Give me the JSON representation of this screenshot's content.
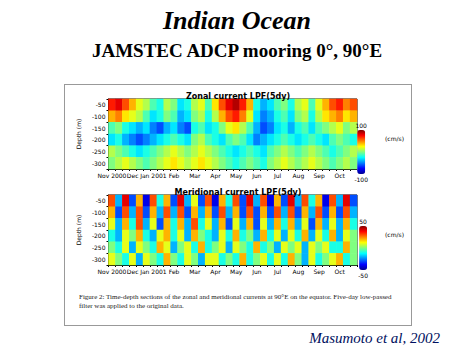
{
  "slide": {
    "title": "Indian Ocean",
    "subtitle": "JAMSTEC ADCP mooring 0°, 90°E",
    "caption": "Figure 2: Time-depth sections of the zonal and meridional currents at 90°E on the equator. Five-day low-passed filter was applied to the original data.",
    "citation": "Masumoto et al, 2002"
  },
  "chart_data": [
    {
      "type": "heatmap",
      "title": "Zonal current LPF(5dy)",
      "ylabel": "Depth (m)",
      "x": [
        "Nov 2000",
        null,
        null,
        "Dec",
        null,
        null,
        "Jan 2001",
        null,
        null,
        "Feb",
        null,
        null,
        "Mar",
        null,
        null,
        "Apr",
        null,
        null,
        "May",
        null,
        null,
        "Jun",
        null,
        null,
        "Jul",
        null,
        null,
        "Aug",
        null,
        null,
        "Sep",
        null,
        null,
        "Oct",
        null,
        null
      ],
      "y": [
        -50,
        -100,
        -150,
        -200,
        -250,
        -300
      ],
      "cells": [
        [
          70,
          80,
          60,
          40,
          20,
          10,
          -10,
          -20,
          10,
          0,
          -30,
          -20,
          10,
          20,
          -10,
          30,
          60,
          80,
          90,
          70,
          40,
          -20,
          -40,
          -30,
          -10,
          0,
          -20,
          10,
          20,
          -10,
          20,
          40,
          60,
          70,
          50,
          60
        ],
        [
          40,
          50,
          30,
          20,
          10,
          -10,
          -30,
          -20,
          0,
          -10,
          -40,
          -30,
          0,
          10,
          -20,
          10,
          40,
          60,
          70,
          50,
          20,
          -30,
          -50,
          -40,
          -20,
          -10,
          -30,
          0,
          10,
          -20,
          10,
          30,
          40,
          50,
          30,
          40
        ],
        [
          -10,
          0,
          -20,
          -30,
          -40,
          -30,
          -50,
          -60,
          -40,
          -30,
          -50,
          -60,
          -20,
          -10,
          -30,
          -20,
          0,
          20,
          30,
          10,
          -10,
          -40,
          -60,
          -50,
          -30,
          -20,
          -40,
          -20,
          -10,
          -30,
          -10,
          0,
          10,
          20,
          0,
          10
        ],
        [
          -30,
          -20,
          -40,
          -50,
          -60,
          -50,
          -40,
          -30,
          -20,
          -10,
          -20,
          -30,
          0,
          10,
          -10,
          -20,
          -30,
          -10,
          0,
          -10,
          -30,
          -50,
          -40,
          -30,
          -20,
          -10,
          -20,
          -30,
          -20,
          -10,
          -20,
          -30,
          -10,
          0,
          -10,
          -20
        ],
        [
          10,
          0,
          -10,
          -20,
          -30,
          -20,
          -10,
          0,
          10,
          20,
          10,
          0,
          10,
          20,
          10,
          0,
          -10,
          -20,
          -30,
          -20,
          -10,
          -20,
          -30,
          -10,
          0,
          10,
          0,
          -10,
          0,
          10,
          0,
          -10,
          -20,
          -10,
          0,
          10
        ],
        [
          0,
          10,
          20,
          10,
          0,
          -10,
          0,
          10,
          20,
          30,
          20,
          10,
          20,
          30,
          20,
          10,
          0,
          -10,
          -20,
          -10,
          0,
          -10,
          -20,
          0,
          10,
          20,
          10,
          0,
          10,
          20,
          10,
          0,
          -10,
          0,
          10,
          0
        ]
      ],
      "color_range": [
        -100,
        100
      ],
      "color_label": "(cm/s)"
    },
    {
      "type": "heatmap",
      "title": "Meridional current LPF(5dy)",
      "ylabel": "Depth (m)",
      "x": [
        "Nov 2000",
        null,
        null,
        "Dec",
        null,
        null,
        "Jan 2001",
        null,
        null,
        "Feb",
        null,
        null,
        "Mar",
        null,
        null,
        "Apr",
        null,
        null,
        "May",
        null,
        null,
        "Jun",
        null,
        null,
        "Jul",
        null,
        null,
        "Aug",
        null,
        null,
        "Sep",
        null,
        null,
        "Oct",
        null,
        null
      ],
      "y": [
        -50,
        -100,
        -150,
        -200,
        -250,
        -300
      ],
      "cells": [
        [
          30,
          -20,
          40,
          -30,
          20,
          -40,
          30,
          -10,
          20,
          -30,
          40,
          -20,
          10,
          -30,
          30,
          -40,
          20,
          -10,
          30,
          -30,
          40,
          -20,
          30,
          -40,
          20,
          -30,
          40,
          -20,
          30,
          -10,
          20,
          -40,
          30,
          -20,
          40,
          -30
        ],
        [
          20,
          -30,
          30,
          -20,
          30,
          -30,
          20,
          -20,
          30,
          -20,
          30,
          -30,
          20,
          -20,
          20,
          -30,
          30,
          -20,
          20,
          -30,
          30,
          -30,
          20,
          -30,
          30,
          -20,
          30,
          -30,
          20,
          -20,
          30,
          -30,
          20,
          -30,
          30,
          -20
        ],
        [
          10,
          -20,
          20,
          -10,
          30,
          -20,
          10,
          -30,
          20,
          -10,
          20,
          -20,
          30,
          -10,
          10,
          -20,
          20,
          -30,
          10,
          -20,
          20,
          -30,
          10,
          -20,
          20,
          -10,
          20,
          -20,
          10,
          -30,
          20,
          -20,
          10,
          -20,
          20,
          -10
        ],
        [
          -10,
          -20,
          10,
          0,
          20,
          -10,
          -20,
          10,
          20,
          -10,
          10,
          -20,
          20,
          0,
          -10,
          -20,
          10,
          -10,
          20,
          -10,
          0,
          -20,
          20,
          -10,
          10,
          -20,
          10,
          -10,
          20,
          -20,
          10,
          -10,
          20,
          -20,
          10,
          0
        ],
        [
          0,
          -10,
          10,
          -20,
          10,
          0,
          -10,
          20,
          10,
          -20,
          0,
          10,
          -10,
          20,
          -10,
          0,
          10,
          -20,
          10,
          0,
          -10,
          20,
          -10,
          0,
          -20,
          10,
          0,
          10,
          -20,
          10,
          0,
          10,
          -10,
          -10,
          20,
          0
        ],
        [
          10,
          0,
          -10,
          10,
          -20,
          10,
          0,
          -10,
          20,
          0,
          -10,
          10,
          0,
          -20,
          10,
          10,
          -10,
          0,
          -10,
          20,
          -10,
          0,
          10,
          -10,
          10,
          -10,
          20,
          0,
          -20,
          10,
          -10,
          0,
          10,
          20,
          -10,
          0
        ]
      ],
      "color_range": [
        -50,
        50
      ],
      "color_label": "(cm/s)"
    }
  ]
}
